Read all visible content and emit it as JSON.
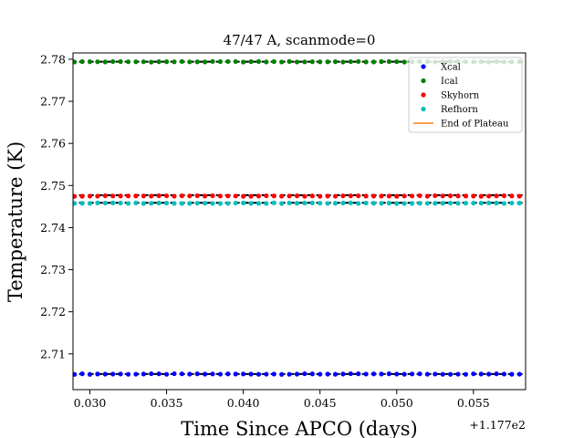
{
  "chart_data": {
    "type": "scatter",
    "title": "47/47 A, scanmode=0",
    "xlabel": "Time Since APCO (days)",
    "ylabel": "Temperature (K)",
    "x_offset_label": "+1.177e2",
    "xlim": [
      117.7289,
      117.7584
    ],
    "ylim": [
      2.7015,
      2.7815
    ],
    "xticks": [
      117.73,
      117.735,
      117.74,
      117.745,
      117.75,
      117.755
    ],
    "xtick_labels": [
      "0.030",
      "0.035",
      "0.040",
      "0.045",
      "0.050",
      "0.055"
    ],
    "yticks": [
      2.71,
      2.72,
      2.73,
      2.74,
      2.75,
      2.76,
      2.77,
      2.78
    ],
    "ytick_labels": [
      "2.71",
      "2.72",
      "2.73",
      "2.74",
      "2.75",
      "2.76",
      "2.77",
      "2.78"
    ],
    "x_start": 117.729,
    "x_step": 0.0005,
    "n_points": 59,
    "series": [
      {
        "name": "Xcal",
        "color": "#0000ff",
        "level": 2.7052,
        "fit_level": 2.7052
      },
      {
        "name": "Ical",
        "color": "#008000",
        "level": 2.7794,
        "fit_level": 2.7794
      },
      {
        "name": "Skyhorn",
        "color": "#ff0000",
        "level": 2.7475,
        "fit_level": 2.7477
      },
      {
        "name": "Refhorn",
        "color": "#00bfbf",
        "level": 2.7458,
        "fit_level": 2.7459
      }
    ],
    "legend": {
      "placement": "top-right",
      "entries": [
        "Xcal",
        "Ical",
        "Skyhorn",
        "Refhorn",
        "End of Plateau"
      ],
      "line_entry_color": "#ff7f0e"
    },
    "grid": false
  }
}
